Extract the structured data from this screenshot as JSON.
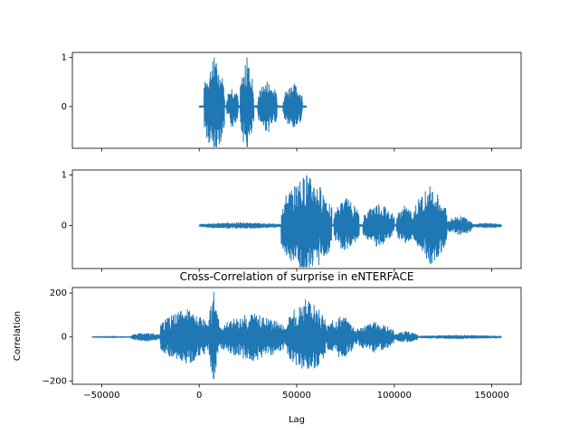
{
  "chart_data": [
    {
      "type": "line",
      "panel": "top",
      "title": "",
      "xlabel": "",
      "ylabel": "",
      "xlim": [
        -65000,
        165000
      ],
      "ylim": [
        -0.85,
        1.1
      ],
      "x_ticks_labeled": false,
      "x_ticks": [
        -50000,
        0,
        50000,
        100000,
        150000
      ],
      "y_ticks": [
        0,
        1
      ],
      "y_tick_labels": [
        "0",
        "1"
      ],
      "color": "#1f77b4",
      "series": [
        {
          "x_start": 0,
          "x_end": 55000,
          "bursts": [
            {
              "x": [
                2500,
                13000
              ],
              "amp": 1.0
            },
            {
              "x": [
                14000,
                20000
              ],
              "amp": 0.45
            },
            {
              "x": [
                21000,
                28000
              ],
              "amp": 0.95
            },
            {
              "x": [
                30000,
                40000
              ],
              "amp": 0.55
            },
            {
              "x": [
                43000,
                53000
              ],
              "amp": 0.5
            }
          ],
          "noise": 0.02,
          "y_min": -0.82,
          "y_max": 1.0
        }
      ]
    },
    {
      "type": "line",
      "panel": "middle",
      "title": "",
      "xlabel": "",
      "ylabel": "",
      "xlim": [
        -65000,
        165000
      ],
      "ylim": [
        -0.85,
        1.1
      ],
      "x_ticks_labeled": false,
      "x_ticks": [
        -50000,
        0,
        50000,
        100000,
        150000
      ],
      "y_ticks": [
        0,
        1
      ],
      "y_tick_labels": [
        "0",
        "1"
      ],
      "color": "#1f77b4",
      "series": [
        {
          "x_start": 0,
          "x_end": 155000,
          "bursts": [
            {
              "x": [
                0,
                42000
              ],
              "amp": 0.06
            },
            {
              "x": [
                42000,
                68000
              ],
              "amp": 1.0
            },
            {
              "x": [
                69000,
                82000
              ],
              "amp": 0.55
            },
            {
              "x": [
                84000,
                100000
              ],
              "amp": 0.45
            },
            {
              "x": [
                101000,
                110000
              ],
              "amp": 0.4
            },
            {
              "x": [
                110000,
                127000
              ],
              "amp": 0.78
            },
            {
              "x": [
                127000,
                140000
              ],
              "amp": 0.2
            },
            {
              "x": [
                140000,
                155000
              ],
              "amp": 0.05
            }
          ],
          "noise": 0.02,
          "y_min": -0.82,
          "y_max": 1.0
        }
      ]
    },
    {
      "type": "line",
      "panel": "bottom",
      "title": "Cross-Correlation of surprise in eNTERFACE",
      "xlabel": "Lag",
      "ylabel": "Correlation",
      "xlim": [
        -65000,
        165000
      ],
      "ylim": [
        -215,
        225
      ],
      "x_ticks_labeled": true,
      "x_ticks": [
        -50000,
        0,
        50000,
        100000,
        150000
      ],
      "x_tick_labels": [
        "−50000",
        "0",
        "50000",
        "100000",
        "150000"
      ],
      "y_ticks": [
        -200,
        0,
        200
      ],
      "y_tick_labels": [
        "−200",
        "0",
        "200"
      ],
      "color": "#1f77b4",
      "series": [
        {
          "x_start": -55000,
          "x_end": 155000,
          "bursts": [
            {
              "x": [
                -55000,
                -35000
              ],
              "amp": 3
            },
            {
              "x": [
                -35000,
                -20000
              ],
              "amp": 20
            },
            {
              "x": [
                -20000,
                5000
              ],
              "amp": 130
            },
            {
              "x": [
                5000,
                10000
              ],
              "amp": 200
            },
            {
              "x": [
                10000,
                45000
              ],
              "amp": 110
            },
            {
              "x": [
                45000,
                65000
              ],
              "amp": 175
            },
            {
              "x": [
                65000,
                80000
              ],
              "amp": 100
            },
            {
              "x": [
                80000,
                100000
              ],
              "amp": 70
            },
            {
              "x": [
                100000,
                112000
              ],
              "amp": 25
            },
            {
              "x": [
                112000,
                155000
              ],
              "amp": 8
            }
          ],
          "noise": 1,
          "y_min": -190,
          "y_max": 205
        }
      ]
    }
  ]
}
